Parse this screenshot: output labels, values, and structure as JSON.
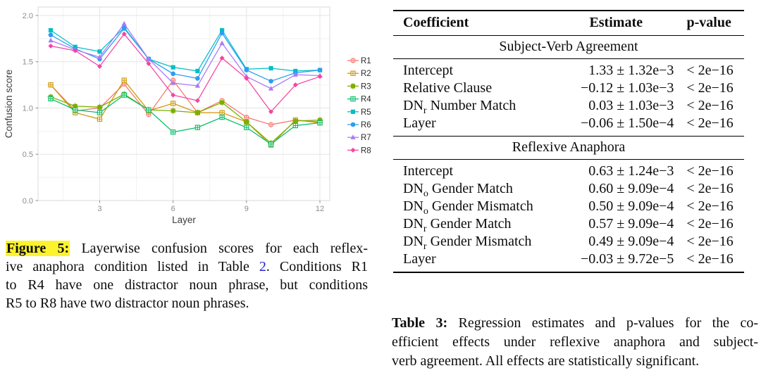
{
  "figure": {
    "caption": {
      "label": "Figure 5:",
      "l1": "Layerwise confusion scores for each reflex-",
      "l2a": "ive anaphora condition listed in Table ",
      "link": "2",
      "l2b": ". Conditions R1",
      "l3": "to R4 have one distractor noun phrase, but conditions",
      "l4": "R5 to R8 have two distractor noun phrases.",
      "highlight_color": "#fdf32c",
      "link_color": "#2323cd"
    }
  },
  "chart_data": {
    "type": "line",
    "title": "",
    "xlabel": "Layer",
    "ylabel": "Confusion score",
    "x": [
      1,
      2,
      3,
      4,
      5,
      6,
      7,
      8,
      9,
      10,
      11,
      12
    ],
    "xticks": [
      3,
      6,
      9,
      12
    ],
    "yticks": [
      0,
      0.5,
      1,
      1.5,
      2
    ],
    "ytick_labels": [
      "0.0",
      "0.5",
      "1.0",
      "1.5",
      "2.0"
    ],
    "ylim": [
      0,
      2
    ],
    "xlim": [
      0.5,
      12.5
    ],
    "grid": true,
    "legend_position": "right",
    "axis_text_color": "#8c8c8c",
    "axis_title_color": "#3c3c3c",
    "grid_major_color": "#e5e5e5",
    "grid_minor_color": "#f2f2f2",
    "panel_border_color": "#d9d9d9",
    "series": [
      {
        "name": "R1",
        "color": "#F8766D",
        "marker": "circle-plus",
        "values": [
          1.25,
          0.97,
          1.0,
          1.26,
          0.93,
          1.3,
          0.95,
          1.08,
          0.9,
          0.82,
          0.87,
          0.85
        ]
      },
      {
        "name": "R2",
        "color": "#CD9600",
        "marker": "square-plus",
        "values": [
          1.25,
          0.95,
          0.88,
          1.3,
          0.97,
          1.05,
          0.95,
          0.95,
          0.85,
          0.6,
          0.87,
          0.84
        ]
      },
      {
        "name": "R3",
        "color": "#7CAE00",
        "marker": "square-plus-filled",
        "values": [
          1.12,
          1.02,
          1.01,
          1.15,
          0.98,
          0.97,
          0.95,
          1.06,
          0.85,
          0.62,
          0.86,
          0.87
        ]
      },
      {
        "name": "R4",
        "color": "#00BE67",
        "marker": "square-plus",
        "values": [
          1.1,
          0.98,
          0.95,
          1.14,
          0.98,
          0.74,
          0.79,
          0.9,
          0.79,
          0.61,
          0.81,
          0.84
        ]
      },
      {
        "name": "R5",
        "color": "#00BFC4",
        "marker": "square",
        "values": [
          1.84,
          1.66,
          1.61,
          1.87,
          1.53,
          1.44,
          1.4,
          1.84,
          1.42,
          1.43,
          1.4,
          1.41
        ]
      },
      {
        "name": "R6",
        "color": "#2B9DF4",
        "marker": "circle",
        "values": [
          1.79,
          1.64,
          1.53,
          1.86,
          1.53,
          1.37,
          1.32,
          1.81,
          1.41,
          1.29,
          1.38,
          1.41
        ]
      },
      {
        "name": "R7",
        "color": "#A97AF5",
        "marker": "triangle",
        "values": [
          1.73,
          1.63,
          1.55,
          1.91,
          1.53,
          1.27,
          1.24,
          1.7,
          1.34,
          1.21,
          1.36,
          1.35
        ]
      },
      {
        "name": "R8",
        "color": "#F544A4",
        "marker": "diamond",
        "values": [
          1.67,
          1.62,
          1.45,
          1.8,
          1.48,
          1.14,
          1.08,
          1.54,
          1.32,
          0.96,
          1.25,
          1.34
        ]
      }
    ]
  },
  "table": {
    "columns": [
      "Coefficient",
      "Estimate",
      "p-value"
    ],
    "sections": [
      {
        "title": "Subject-Verb Agreement",
        "rows": [
          [
            "Intercept",
            "1.33 ± 1.32e−3",
            "< 2e−16"
          ],
          [
            "Relative Clause",
            "−0.12 ± 1.03e−3",
            "< 2e−16"
          ],
          [
            "DN_r Number Match",
            "0.03 ± 1.03e−3",
            "< 2e−16"
          ],
          [
            "Layer",
            "−0.06 ± 1.50e−4",
            "< 2e−16"
          ]
        ]
      },
      {
        "title": "Reflexive Anaphora",
        "rows": [
          [
            "Intercept",
            "0.63 ± 1.24e−3",
            "< 2e−16"
          ],
          [
            "DN_o Gender Match",
            "0.60 ± 9.09e−4",
            "< 2e−16"
          ],
          [
            "DN_o Gender Mismatch",
            "0.50 ± 9.09e−4",
            "< 2e−16"
          ],
          [
            "DN_r Gender Match",
            "0.57 ± 9.09e−4",
            "< 2e−16"
          ],
          [
            "DN_r Gender Mismatch",
            "0.49 ± 9.09e−4",
            "< 2e−16"
          ],
          [
            "Layer",
            "−0.03 ± 9.72e−5",
            "< 2e−16"
          ]
        ]
      }
    ],
    "caption": {
      "label": "Table 3:",
      "l1": "Regression estimates and p-values for the co-",
      "l2": "efficient effects under reflexive anaphora and subject-",
      "l3": "verb agreement. All effects are statistically significant."
    }
  }
}
